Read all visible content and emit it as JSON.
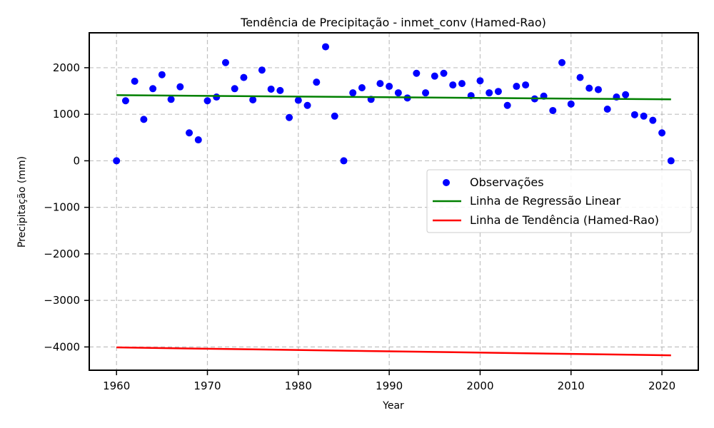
{
  "chart_data": {
    "type": "scatter",
    "title": "Tendência de Precipitação - inmet_conv (Hamed-Rao)",
    "xlabel": "Year",
    "ylabel": "Precipitação (mm)",
    "xlim": [
      1957,
      2024
    ],
    "ylim": [
      -4500,
      2750
    ],
    "x_ticks": [
      1960,
      1970,
      1980,
      1990,
      2000,
      2010,
      2020
    ],
    "y_ticks": [
      -4000,
      -3000,
      -2000,
      -1000,
      0,
      1000,
      2000
    ],
    "grid": true,
    "legend_position": "center-right",
    "series": [
      {
        "name": "Observações",
        "kind": "scatter",
        "color": "#0000ff",
        "x": [
          1960,
          1961,
          1962,
          1963,
          1964,
          1965,
          1966,
          1967,
          1968,
          1969,
          1970,
          1971,
          1972,
          1973,
          1974,
          1975,
          1976,
          1977,
          1978,
          1979,
          1980,
          1981,
          1982,
          1983,
          1984,
          1985,
          1986,
          1987,
          1988,
          1989,
          1990,
          1991,
          1992,
          1993,
          1994,
          1995,
          1996,
          1997,
          1998,
          1999,
          2000,
          2001,
          2002,
          2003,
          2004,
          2005,
          2006,
          2007,
          2008,
          2009,
          2010,
          2011,
          2012,
          2013,
          2014,
          2015,
          2016,
          2017,
          2018,
          2019,
          2020,
          2021
        ],
        "y": [
          0,
          1290,
          1710,
          890,
          1550,
          1850,
          1320,
          1590,
          600,
          450,
          1290,
          1370,
          2110,
          1550,
          1790,
          1310,
          1950,
          1540,
          1510,
          930,
          1300,
          1190,
          1690,
          2450,
          960,
          0,
          1460,
          1570,
          1320,
          1660,
          1600,
          1460,
          1350,
          1880,
          1460,
          1820,
          1880,
          1630,
          1660,
          1400,
          1720,
          1460,
          1490,
          1190,
          1600,
          1630,
          1330,
          1390,
          1080,
          2110,
          1220,
          1790,
          1560,
          1530,
          1110,
          1370,
          1420,
          990,
          960,
          870,
          600,
          0
        ]
      },
      {
        "name": "Linha de Regressão Linear",
        "kind": "line",
        "color": "#008000",
        "x": [
          1960,
          2021
        ],
        "y": [
          1410,
          1320
        ]
      },
      {
        "name": "Linha de Tendência (Hamed-Rao)",
        "kind": "line",
        "color": "#ff0000",
        "x": [
          1960,
          2021
        ],
        "y": [
          -4010,
          -4180
        ]
      }
    ]
  }
}
